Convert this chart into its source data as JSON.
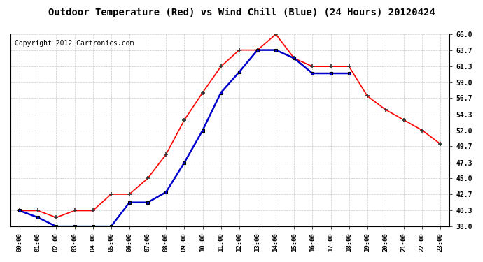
{
  "title": "Outdoor Temperature (Red) vs Wind Chill (Blue) (24 Hours) 20120424",
  "copyright_text": "Copyright 2012 Cartronics.com",
  "hours": [
    "00:00",
    "01:00",
    "02:00",
    "03:00",
    "04:00",
    "05:00",
    "06:00",
    "07:00",
    "08:00",
    "09:00",
    "10:00",
    "11:00",
    "12:00",
    "13:00",
    "14:00",
    "15:00",
    "16:00",
    "17:00",
    "18:00",
    "19:00",
    "20:00",
    "21:00",
    "22:00",
    "23:00"
  ],
  "temp_red": [
    40.3,
    40.3,
    39.3,
    40.3,
    40.3,
    42.7,
    42.7,
    45.0,
    48.5,
    53.5,
    57.5,
    61.3,
    63.7,
    63.7,
    66.0,
    62.5,
    61.3,
    61.3,
    61.3,
    57.0,
    55.0,
    53.5,
    52.0,
    50.0
  ],
  "wind_chill_blue_x": [
    0,
    1,
    2,
    3,
    4,
    5,
    6,
    7,
    8,
    9,
    10,
    11,
    12,
    13,
    14,
    15,
    16,
    17,
    18
  ],
  "wind_chill_blue_y": [
    40.3,
    39.3,
    38.0,
    38.0,
    38.0,
    38.0,
    41.5,
    41.5,
    43.0,
    47.3,
    52.0,
    57.5,
    60.5,
    63.7,
    63.7,
    62.5,
    60.3,
    60.3,
    60.3
  ],
  "ylim": [
    38.0,
    66.0
  ],
  "yticks": [
    38.0,
    40.3,
    42.7,
    45.0,
    47.3,
    49.7,
    52.0,
    54.3,
    56.7,
    59.0,
    61.3,
    63.7,
    66.0
  ],
  "bg_color": "#ffffff",
  "plot_bg_color": "#ffffff",
  "grid_color": "#bbbbbb",
  "red_color": "#ff0000",
  "blue_color": "#0000cc",
  "title_fontsize": 10,
  "copyright_fontsize": 7
}
